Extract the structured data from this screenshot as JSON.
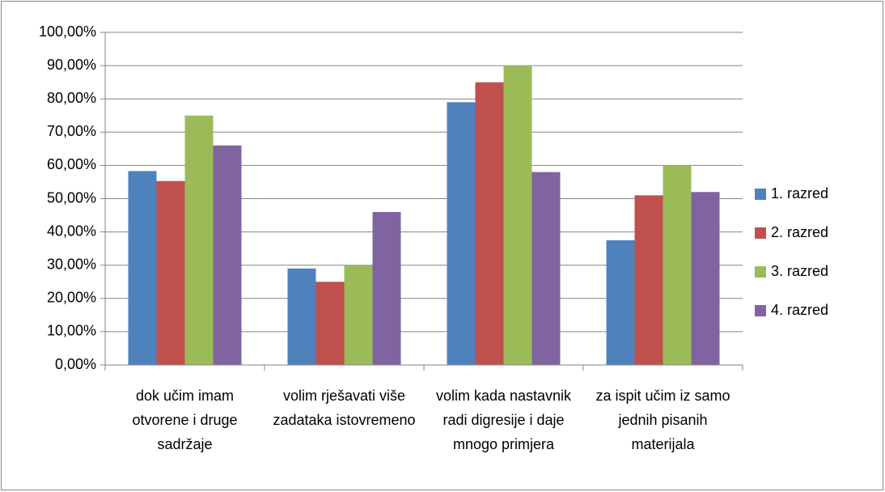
{
  "chart_data": {
    "type": "bar",
    "categories": [
      "dok učim imam otvorene i druge sadržaje",
      "volim rješavati više zadataka istovremeno",
      "volim kada nastavnik radi digresije i daje mnogo primjera",
      "za ispit učim iz samo jednih pisanih materijala"
    ],
    "series": [
      {
        "name": "1. razred",
        "color": "#4f81bd",
        "values": [
          58.3,
          29,
          79,
          37.5
        ]
      },
      {
        "name": "2. razred",
        "color": "#c0504d",
        "values": [
          55.3,
          25,
          85,
          51
        ]
      },
      {
        "name": "3. razred",
        "color": "#9bbb59",
        "values": [
          75,
          30,
          90,
          60
        ]
      },
      {
        "name": "4. razred",
        "color": "#8064a2",
        "values": [
          66,
          46,
          58,
          52
        ]
      }
    ],
    "ylim": [
      0,
      100
    ],
    "yticks": [
      {
        "value": 0,
        "label": "0,00%"
      },
      {
        "value": 10,
        "label": "10,00%"
      },
      {
        "value": 20,
        "label": "20,00%"
      },
      {
        "value": 30,
        "label": "30,00%"
      },
      {
        "value": 40,
        "label": "40,00%"
      },
      {
        "value": 50,
        "label": "50,00%"
      },
      {
        "value": 60,
        "label": "60,00%"
      },
      {
        "value": 70,
        "label": "70,00%"
      },
      {
        "value": 80,
        "label": "80,00%"
      },
      {
        "value": 90,
        "label": "90,00%"
      },
      {
        "value": 100,
        "label": "100,00%"
      }
    ],
    "grid": true,
    "legend": "right"
  }
}
